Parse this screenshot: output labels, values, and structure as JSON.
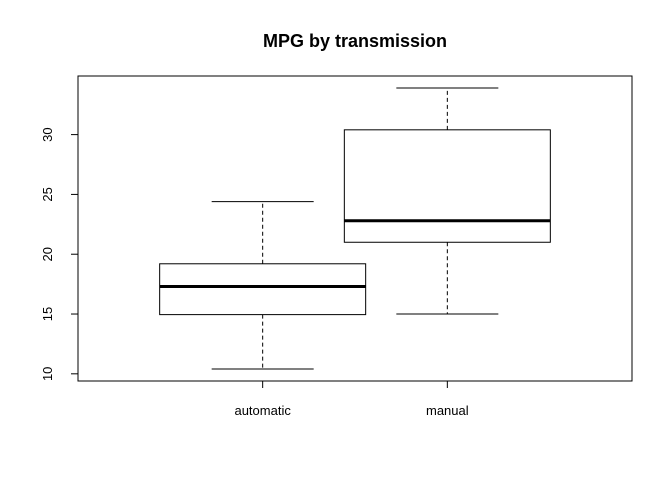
{
  "chart_data": {
    "type": "boxplot",
    "title": "MPG by transmission",
    "xlabel": "",
    "ylabel": "",
    "categories": [
      "automatic",
      "manual"
    ],
    "boxes": [
      {
        "category": "automatic",
        "whisker_low": 10.4,
        "q1": 14.95,
        "median": 17.3,
        "q3": 19.2,
        "whisker_high": 24.4
      },
      {
        "category": "manual",
        "whisker_low": 15.0,
        "q1": 21.0,
        "median": 22.8,
        "q3": 30.4,
        "whisker_high": 33.9
      }
    ],
    "ylim": [
      9.4,
      34.9
    ],
    "yticks": [
      10,
      15,
      20,
      25,
      30
    ],
    "ytick_labels": [
      "10",
      "15",
      "20",
      "25",
      "30"
    ],
    "grid": false,
    "legend": "none"
  }
}
